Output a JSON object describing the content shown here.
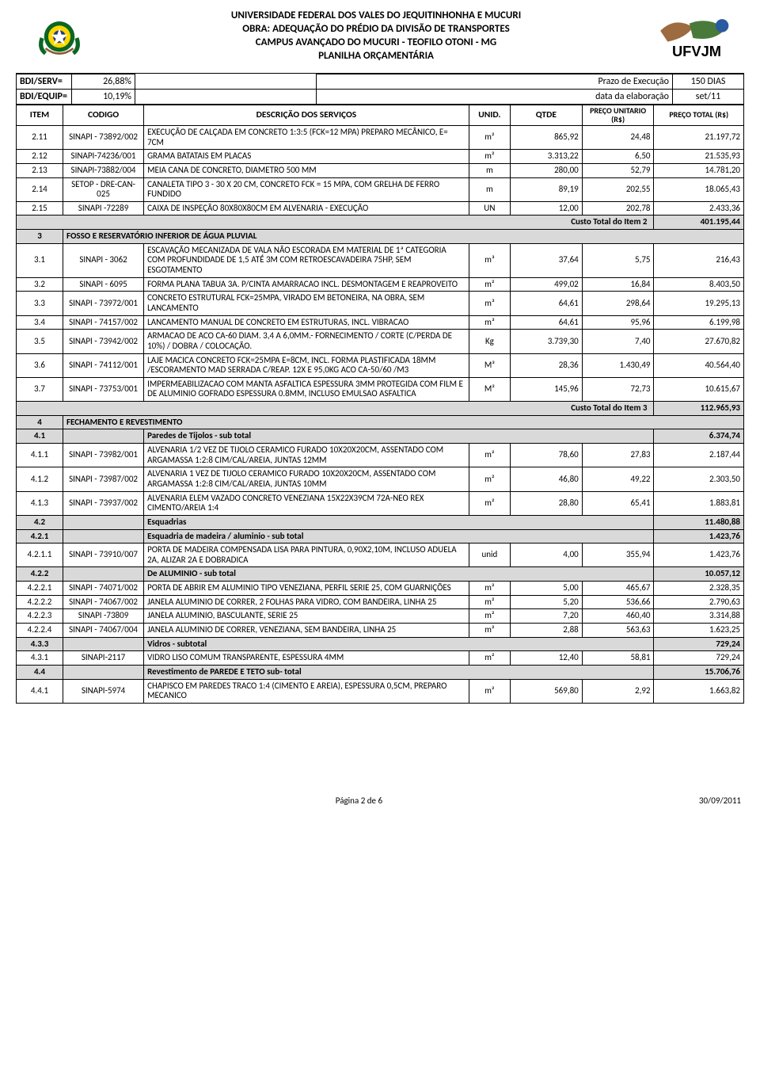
{
  "header": {
    "line1": "UNIVERSIDADE FEDERAL DOS VALES DO JEQUITINHONHA E MUCURI",
    "line2": "OBRA: ADEQUAÇÃO DO PRÉDIO DA DIVISÃO DE TRANSPORTES",
    "line3": "CAMPUS AVANÇADO DO MUCURI - TEOFILO OTONI - MG",
    "line4": "PLANILHA ORÇAMENTÁRIA",
    "logo_text": "UFVJM"
  },
  "meta": {
    "bdi_serv_label": "BDI/SERV=",
    "bdi_serv_val": "26,88%",
    "prazo_label": "Prazo de Execução",
    "prazo_val": "150 DIAS",
    "bdi_equip_label": "BDI/EQUIP=",
    "bdi_equip_val": "10,19%",
    "data_label": "data da elaboração",
    "data_val": "set/11"
  },
  "columns": {
    "item": "ITEM",
    "codigo": "CODIGO",
    "desc": "DESCRIÇÃO DOS SERVIÇOS",
    "unid": "UNID.",
    "qtde": "QTDE",
    "unit": "PREÇO UNITARIO (R$)",
    "total": "PREÇO TOTAL (R$)"
  },
  "rows": [
    {
      "type": "data",
      "item": "2.11",
      "codigo": "SINAPI - 73892/002",
      "desc": "EXECUÇÃO DE CALÇADA EM CONCRETO 1:3:5 (FCK=12 MPA) PREPARO MECÂNICO, E= 7CM",
      "un": "m²",
      "q": "865,92",
      "u": "24,48",
      "t": "21.197,72"
    },
    {
      "type": "data",
      "item": "2.12",
      "codigo": "SINAPI-74236/001",
      "desc": "GRAMA BATATAIS EM PLACAS",
      "un": "m²",
      "q": "3.313,22",
      "u": "6,50",
      "t": "21.535,93"
    },
    {
      "type": "data",
      "item": "2.13",
      "codigo": "SINAPI-73882/004",
      "desc": "MEIA CANA DE CONCRETO, DIAMETRO 500 MM",
      "un": "m",
      "q": "280,00",
      "u": "52,79",
      "t": "14.781,20"
    },
    {
      "type": "data",
      "item": "2.14",
      "codigo": "SETOP - DRE-CAN-025",
      "desc": "CANALETA TIPO 3 - 30 X 20 CM, CONCRETO FCK = 15 MPA, COM GRELHA DE FERRO FUNDIDO",
      "un": "m",
      "q": "89,19",
      "u": "202,55",
      "t": "18.065,43"
    },
    {
      "type": "data",
      "item": "2.15",
      "codigo": "SINAPI -72289",
      "desc": "CAIXA DE INSPEÇÃO 80X80X80CM EM ALVENARIA - EXECUÇÃO",
      "un": "UN",
      "q": "12,00",
      "u": "202,78",
      "t": "2.433,36"
    },
    {
      "type": "subtotal",
      "label": "Custo Total do Item 2",
      "t": "401.195,44"
    },
    {
      "type": "section",
      "item": "3",
      "desc": "FOSSO E RESERVATÓRIO INFERIOR DE ÁGUA PLUVIAL"
    },
    {
      "type": "data",
      "item": "3.1",
      "codigo": "SINAPI  - 3062",
      "desc": "ESCAVAÇÃO MECANIZADA DE VALA NÃO ESCORADA EM MATERIAL DE 1ª CATEGORIA COM PROFUNDIDADE DE 1,5 ATÉ 3M COM RETROESCAVADEIRA 75HP, SEM ESGOTAMENTO",
      "un": "m³",
      "q": "37,64",
      "u": "5,75",
      "t": "216,43"
    },
    {
      "type": "data",
      "item": "3.2",
      "codigo": "SINAPI - 6095",
      "desc": "FORMA PLANA TABUA 3A. P/CINTA AMARRACAO INCL. DESMONTAGEM E REAPROVEITO",
      "un": "m²",
      "q": "499,02",
      "u": "16,84",
      "t": "8.403,50"
    },
    {
      "type": "data",
      "item": "3.3",
      "codigo": "SINAPI - 73972/001",
      "desc": "CONCRETO ESTRUTURAL FCK=25MPA, VIRADO EM BETONEIRA, NA OBRA, SEM LANCAMENTO",
      "un": "m³",
      "q": "64,61",
      "u": "298,64",
      "t": "19.295,13"
    },
    {
      "type": "data",
      "item": "3.4",
      "codigo": "SINAPI - 74157/002",
      "desc": "LANCAMENTO MANUAL DE CONCRETO EM ESTRUTURAS, INCL. VIBRACAO",
      "un": "m³",
      "q": "64,61",
      "u": "95,96",
      "t": "6.199,98"
    },
    {
      "type": "data",
      "item": "3.5",
      "codigo": "SINAPI - 73942/002",
      "desc": "ARMACAO DE ACO CA-60 DIAM. 3,4 A 6,0MM.- FORNECIMENTO / CORTE (C/PERDA DE 10%) / DOBRA / COLOCAÇÃO.",
      "un": "Kg",
      "q": "3.739,30",
      "u": "7,40",
      "t": "27.670,82"
    },
    {
      "type": "data",
      "item": "3.6",
      "codigo": "SINAPI - 74112/001",
      "desc": "LAJE MACICA CONCRETO FCK=25MPA E=8CM, INCL. FORMA PLASTIFICADA 18MM /ESCORAMENTO MAD SERRADA C/REAP. 12X E 95,0KG ACO CA-50/60 /M3",
      "un": "M³",
      "q": "28,36",
      "u": "1.430,49",
      "t": "40.564,40"
    },
    {
      "type": "data",
      "item": "3.7",
      "codigo": "SINAPI - 73753/001",
      "desc": "IMPERMEABILIZACAO COM MANTA ASFALTICA ESPESSURA 3MM PROTEGIDA COM FILM E DE ALUMINIO GOFRADO ESPESSURA 0.8MM, INCLUSO EMULSAO ASFALTICA",
      "un": "M²",
      "q": "145,96",
      "u": "72,73",
      "t": "10.615,67"
    },
    {
      "type": "subtotal",
      "label": "Custo Total do Item 3",
      "t": "112.965,93"
    },
    {
      "type": "section",
      "item": "4",
      "desc": "FECHAMENTO E REVESTIMENTO"
    },
    {
      "type": "subheader",
      "item": "4.1",
      "desc": "Paredes de Tijolos - sub total",
      "t": "6.374,74"
    },
    {
      "type": "data",
      "item": "4.1.1",
      "codigo": "SINAPI - 73982/001",
      "desc": "ALVENARIA 1/2 VEZ DE TIJOLO CERAMICO FURADO 10X20X20CM, ASSENTADO COM ARGAMASSA 1:2:8 CIM/CAL/AREIA, JUNTAS 12MM",
      "un": "m²",
      "q": "78,60",
      "u": "27,83",
      "t": "2.187,44"
    },
    {
      "type": "data",
      "item": "4.1.2",
      "codigo": "SINAPI - 73987/002",
      "desc": "ALVENARIA 1 VEZ DE TIJOLO CERAMICO FURADO 10X20X20CM, ASSENTADO COM ARGAMASSA 1:2:8 CIM/CAL/AREIA, JUNTAS 10MM",
      "un": "m²",
      "q": "46,80",
      "u": "49,22",
      "t": "2.303,50"
    },
    {
      "type": "data",
      "item": "4.1.3",
      "codigo": "SINAPI - 73937/002",
      "desc": "ALVENARIA ELEM VAZADO CONCRETO VENEZIANA 15X22X39CM 72A-NEO REX CIMENTO/AREIA 1:4",
      "un": "m²",
      "q": "28,80",
      "u": "65,41",
      "t": "1.883,81"
    },
    {
      "type": "subheader",
      "item": "4.2",
      "desc": "Esquadrias",
      "t": "11.480,88"
    },
    {
      "type": "subheader",
      "item": "4.2.1",
      "desc": "Esquadria de madeira / aluminio - sub total",
      "t": "1.423,76"
    },
    {
      "type": "data",
      "item": "4.2.1.1",
      "codigo": "SINAPI - 73910/007",
      "desc": "PORTA DE MADEIRA COMPENSADA LISA PARA PINTURA, 0,90X2,10M, INCLUSO ADUELA 2A, ALIZAR 2A E DOBRADICA",
      "un": "unid",
      "q": "4,00",
      "u": "355,94",
      "t": "1.423,76"
    },
    {
      "type": "subheader",
      "item": "4.2.2",
      "desc": "De ALUMINIO - sub total",
      "t": "10.057,12"
    },
    {
      "type": "data",
      "item": "4.2.2.1",
      "codigo": "SINAPI - 74071/002",
      "desc": "PORTA DE ABRIR EM ALUMINIO TIPO VENEZIANA, PERFIL SERIE 25, COM GUARNIÇÕES",
      "un": "m²",
      "q": "5,00",
      "u": "465,67",
      "t": "2.328,35"
    },
    {
      "type": "data",
      "item": "4.2.2.2",
      "codigo": "SINAPI - 74067/002",
      "desc": "JANELA ALUMINIO DE CORRER, 2 FOLHAS PARA VIDRO, COM BANDEIRA, LINHA 25",
      "un": "m²",
      "q": "5,20",
      "u": "536,66",
      "t": "2.790,63"
    },
    {
      "type": "data",
      "item": "4.2.2.3",
      "codigo": "SINAPI -73809",
      "desc": "JANELA ALUMINIO, BASCULANTE, SERIE 25",
      "un": "m²",
      "q": "7,20",
      "u": "460,40",
      "t": "3.314,88"
    },
    {
      "type": "data",
      "item": "4.2.2.4",
      "codigo": "SINAPI - 74067/004",
      "desc": "JANELA ALUMINIO DE CORRER, VENEZIANA, SEM BANDEIRA, LINHA 25",
      "un": "m²",
      "q": "2,88",
      "u": "563,63",
      "t": "1.623,25"
    },
    {
      "type": "subheader",
      "item": "4.3.3",
      "desc": "Vidros - subtotal",
      "t": "729,24"
    },
    {
      "type": "data",
      "item": "4.3.1",
      "codigo": "SINAPI-2117",
      "desc": "VIDRO LISO COMUM TRANSPARENTE, ESPESSURA 4MM",
      "un": "m²",
      "q": "12,40",
      "u": "58,81",
      "t": "729,24"
    },
    {
      "type": "subheader",
      "item": "4.4",
      "desc": "Revestimento de PAREDE E TETO sub- total",
      "t": "15.706,76"
    },
    {
      "type": "data",
      "item": "4.4.1",
      "codigo": "SINAPI-5974",
      "desc": "CHAPISCO EM PAREDES TRACO 1:4 (CIMENTO E AREIA), ESPESSURA 0,5CM, PREPARO MECANICO",
      "un": "m²",
      "q": "569,80",
      "u": "2,92",
      "t": "1.663,82"
    }
  ],
  "footer": {
    "page": "Página 2 de 6",
    "date": "30/09/2011"
  }
}
